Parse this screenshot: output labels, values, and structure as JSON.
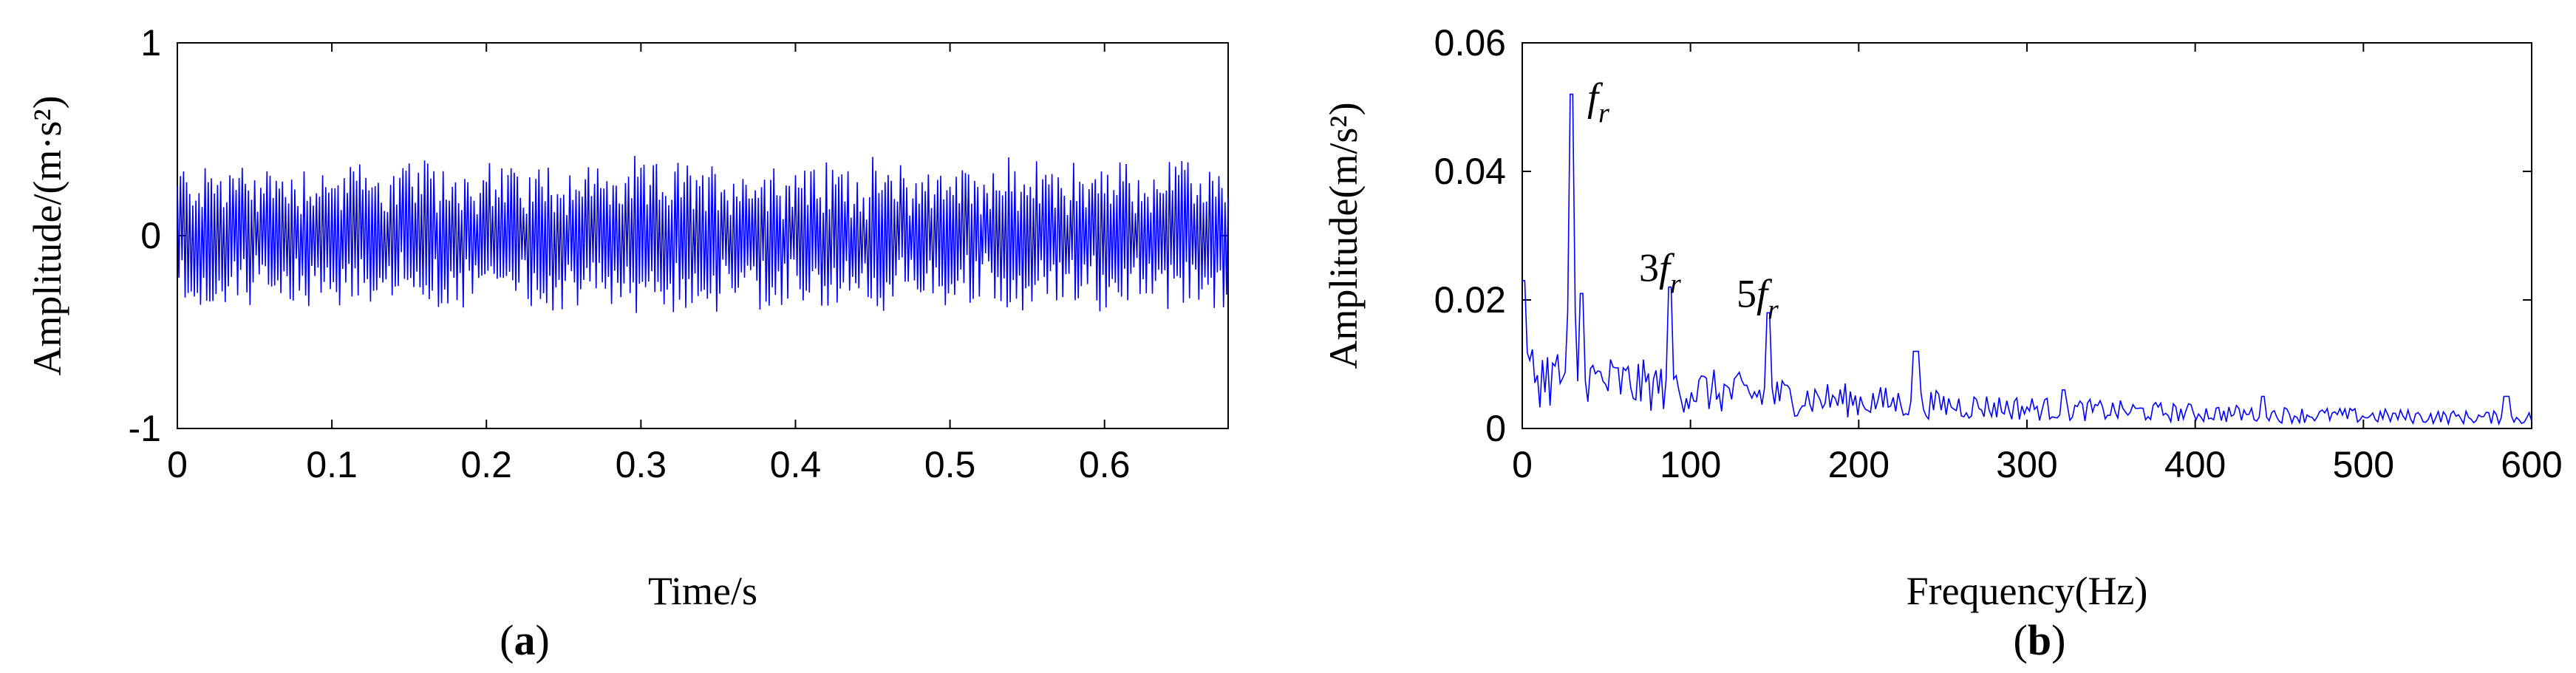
{
  "chart_data": [
    {
      "type": "line",
      "panel_label": {
        "open": "(",
        "letter": "a",
        "close": ")"
      },
      "xlabel": "Time/s",
      "ylabel": "Amplitude/(m·s²)",
      "xlim": [
        0,
        0.68
      ],
      "ylim": [
        -1,
        1
      ],
      "x_ticks": [
        "0",
        "0.1",
        "0.2",
        "0.3",
        "0.4",
        "0.5",
        "0.6"
      ],
      "x_tick_values": [
        0,
        0.1,
        0.2,
        0.3,
        0.4,
        0.5,
        0.6
      ],
      "y_ticks": [
        "-1",
        "0",
        "1"
      ],
      "y_tick_values": [
        -1,
        0,
        1
      ],
      "grid": false,
      "line_color": "#0000ff",
      "signal": {
        "sample_count": 680,
        "x_start": 0,
        "x_end": 0.68,
        "typical_abs_amplitude": 0.3,
        "max": 0.62,
        "min": -0.62
      }
    },
    {
      "type": "line",
      "panel_label": {
        "open": "(",
        "letter": "b",
        "close": ")"
      },
      "xlabel": "Frequency(Hz)",
      "ylabel": "Amplitude(m/s²)",
      "xlim": [
        0,
        600
      ],
      "ylim": [
        0,
        0.06
      ],
      "x_ticks": [
        "0",
        "100",
        "200",
        "300",
        "400",
        "500",
        "600"
      ],
      "x_tick_values": [
        0,
        100,
        200,
        300,
        400,
        500,
        600
      ],
      "y_ticks": [
        "0",
        "0.02",
        "0.04",
        "0.06"
      ],
      "y_tick_values": [
        0,
        0.02,
        0.04,
        0.06
      ],
      "grid": false,
      "line_color": "#0000ff",
      "peaks": [
        {
          "x": 0,
          "y": 0.023
        },
        {
          "x": 29,
          "y": 0.052
        },
        {
          "x": 35,
          "y": 0.021
        },
        {
          "x": 88,
          "y": 0.022
        },
        {
          "x": 146,
          "y": 0.018
        },
        {
          "x": 234,
          "y": 0.012
        },
        {
          "x": 322,
          "y": 0.006
        },
        {
          "x": 440,
          "y": 0.005
        },
        {
          "x": 585,
          "y": 0.005
        }
      ],
      "annotations": [
        {
          "x": 29,
          "y": 0.052,
          "main": "f",
          "sub": "r"
        },
        {
          "x": 88,
          "y": 0.022,
          "main": "3f",
          "sub": "r"
        },
        {
          "x": 146,
          "y": 0.018,
          "main": "5f",
          "sub": "r"
        }
      ]
    }
  ]
}
